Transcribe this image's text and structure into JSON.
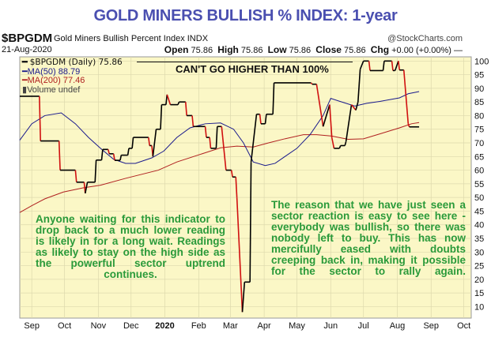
{
  "header": {
    "title": "GOLD MINERS BULLISH % INDEX: 1-year",
    "symbol": "$BPGDM",
    "symbol_description": "Gold Miners Bullish Percent Index  INDX",
    "copyright": "@StockCharts.com",
    "date": "21-Aug-2020",
    "open_label": "Open",
    "open": "75.86",
    "high_label": "High",
    "high": "75.86",
    "low_label": "Low",
    "low": "75.86",
    "close_label": "Close",
    "close": "75.86",
    "chg_label": "Chg",
    "chg": "+0.00 (+0.00%)"
  },
  "legend": {
    "main": "$BPGDM (Daily) 75.86",
    "ma50": "MA(50) 88.79",
    "ma200": "MA(200) 77.46",
    "volume": "Volume undef"
  },
  "annotations": {
    "cap": "CAN'T GO HIGHER THAN 100%",
    "left_lines": [
      "Anyone waiting for this indicator to",
      "drop back to a much lower reading",
      "is likely in for a long wait. Readings",
      "as likely to stay on the high side as",
      "the powerful sector uptrend",
      "continues."
    ],
    "right_lines": [
      "The reason that we have just seen a",
      "sector reaction is easy to see here -",
      "everybody was bullish, so there was",
      "nobody left to buy. This has now",
      "mercifully eased with doubts",
      "creeping back in, making it possible",
      "for the sector to rally again."
    ]
  },
  "colors": {
    "plot_bg": "#fbf7c6",
    "grid": "#ddd9ad",
    "price_up": "#000000",
    "price_down": "#d01010",
    "ma50": "#1a1a8c",
    "ma200": "#b02020",
    "annotation": "#2a9a3a",
    "title": "#4a4fb0"
  },
  "chart_data": {
    "type": "line",
    "x_range": [
      "2019-08-21",
      "2020-10-31"
    ],
    "ylim": [
      5,
      100
    ],
    "y_ticks": [
      10,
      15,
      20,
      25,
      30,
      35,
      40,
      45,
      50,
      55,
      60,
      65,
      70,
      75,
      80,
      85,
      90,
      95,
      100
    ],
    "x_ticks": [
      {
        "date": "2019-09-01",
        "label": "Sep"
      },
      {
        "date": "2019-10-01",
        "label": "Oct"
      },
      {
        "date": "2019-11-01",
        "label": "Nov"
      },
      {
        "date": "2019-12-01",
        "label": "Dec"
      },
      {
        "date": "2020-01-01",
        "label": "2020"
      },
      {
        "date": "2020-02-01",
        "label": "Feb"
      },
      {
        "date": "2020-03-01",
        "label": "Mar"
      },
      {
        "date": "2020-04-01",
        "label": "Apr"
      },
      {
        "date": "2020-05-01",
        "label": "May"
      },
      {
        "date": "2020-06-01",
        "label": "Jun"
      },
      {
        "date": "2020-07-01",
        "label": "Jul"
      },
      {
        "date": "2020-08-01",
        "label": "Aug"
      },
      {
        "date": "2020-09-01",
        "label": "Sep"
      },
      {
        "date": "2020-10-01",
        "label": "Oct"
      }
    ],
    "grid": true,
    "legend_position": "top-left",
    "series": [
      {
        "name": "$BPGDM (Daily)",
        "points": [
          [
            "2019-08-21",
            87.1
          ],
          [
            "2019-09-08",
            87.1
          ],
          [
            "2019-09-09",
            70.7
          ],
          [
            "2019-09-26",
            70.7
          ],
          [
            "2019-09-27",
            60
          ],
          [
            "2019-10-11",
            60
          ],
          [
            "2019-10-12",
            55.6
          ],
          [
            "2019-10-19",
            55.6
          ],
          [
            "2019-10-20",
            51.5
          ],
          [
            "2019-10-22",
            55.6
          ],
          [
            "2019-10-29",
            55.6
          ],
          [
            "2019-10-30",
            63.7
          ],
          [
            "2019-11-04",
            63.7
          ],
          [
            "2019-11-05",
            67.6
          ],
          [
            "2019-11-10",
            67.6
          ],
          [
            "2019-11-11",
            66
          ],
          [
            "2019-11-15",
            66
          ],
          [
            "2019-11-16",
            63.6
          ],
          [
            "2019-11-21",
            63.6
          ],
          [
            "2019-11-22",
            65.5
          ],
          [
            "2019-11-28",
            65.5
          ],
          [
            "2019-11-29",
            68
          ],
          [
            "2019-12-02",
            68
          ],
          [
            "2019-12-03",
            72
          ],
          [
            "2019-12-17",
            72
          ],
          [
            "2019-12-18",
            69
          ],
          [
            "2019-12-20",
            69
          ],
          [
            "2019-12-21",
            65
          ],
          [
            "2019-12-24",
            75
          ],
          [
            "2019-12-28",
            75
          ],
          [
            "2019-12-29",
            84
          ],
          [
            "2020-01-02",
            84
          ],
          [
            "2020-01-03",
            87.7
          ],
          [
            "2020-01-06",
            84
          ],
          [
            "2020-01-13",
            84
          ],
          [
            "2020-01-14",
            85
          ],
          [
            "2020-01-20",
            85
          ],
          [
            "2020-01-21",
            80
          ],
          [
            "2020-01-26",
            80
          ],
          [
            "2020-01-27",
            76
          ],
          [
            "2020-02-07",
            76
          ],
          [
            "2020-02-08",
            72
          ],
          [
            "2020-02-11",
            72
          ],
          [
            "2020-02-12",
            68
          ],
          [
            "2020-02-17",
            68
          ],
          [
            "2020-02-18",
            76
          ],
          [
            "2020-02-22",
            76
          ],
          [
            "2020-02-23",
            72
          ],
          [
            "2020-02-26",
            60
          ],
          [
            "2020-03-02",
            60
          ],
          [
            "2020-03-03",
            57.5
          ],
          [
            "2020-03-06",
            57.5
          ],
          [
            "2020-03-07",
            50
          ],
          [
            "2020-03-12",
            8
          ],
          [
            "2020-03-14",
            19
          ],
          [
            "2020-03-19",
            19
          ],
          [
            "2020-03-20",
            63
          ],
          [
            "2020-03-25",
            80.5
          ],
          [
            "2020-03-28",
            80.5
          ],
          [
            "2020-03-29",
            77
          ],
          [
            "2020-04-02",
            77
          ],
          [
            "2020-04-03",
            80.5
          ],
          [
            "2020-04-09",
            80.5
          ],
          [
            "2020-04-10",
            92
          ],
          [
            "2020-05-14",
            92
          ],
          [
            "2020-05-15",
            91.5
          ],
          [
            "2020-05-19",
            91.5
          ],
          [
            "2020-05-20",
            89
          ],
          [
            "2020-05-25",
            76
          ],
          [
            "2020-05-31",
            84
          ],
          [
            "2020-06-02",
            72
          ],
          [
            "2020-06-04",
            68
          ],
          [
            "2020-06-09",
            68
          ],
          [
            "2020-06-10",
            69
          ],
          [
            "2020-06-14",
            69
          ],
          [
            "2020-06-15",
            70.5
          ],
          [
            "2020-06-20",
            84
          ],
          [
            "2020-06-24",
            82
          ],
          [
            "2020-06-26",
            85
          ],
          [
            "2020-06-28",
            97
          ],
          [
            "2020-07-01",
            100
          ],
          [
            "2020-07-06",
            100
          ],
          [
            "2020-07-07",
            96.5
          ],
          [
            "2020-07-19",
            96.5
          ],
          [
            "2020-07-20",
            100
          ],
          [
            "2020-07-27",
            100
          ],
          [
            "2020-07-28",
            96.5
          ],
          [
            "2020-07-30",
            96.5
          ],
          [
            "2020-08-02",
            100
          ],
          [
            "2020-08-03",
            96.7
          ],
          [
            "2020-08-07",
            96.7
          ],
          [
            "2020-08-11",
            77
          ],
          [
            "2020-08-12",
            75.86
          ],
          [
            "2020-08-21",
            75.86
          ]
        ]
      },
      {
        "name": "MA(50)",
        "points": [
          [
            "2019-08-21",
            71
          ],
          [
            "2019-09-01",
            77
          ],
          [
            "2019-09-13",
            80
          ],
          [
            "2019-09-28",
            81
          ],
          [
            "2019-10-11",
            77
          ],
          [
            "2019-10-23",
            72
          ],
          [
            "2019-11-03",
            68
          ],
          [
            "2019-11-15",
            64
          ],
          [
            "2019-11-26",
            62.5
          ],
          [
            "2019-12-05",
            62.5
          ],
          [
            "2019-12-20",
            64.5
          ],
          [
            "2019-12-31",
            67
          ],
          [
            "2020-01-12",
            72
          ],
          [
            "2020-01-24",
            75.5
          ],
          [
            "2020-02-07",
            77
          ],
          [
            "2020-02-21",
            77.3
          ],
          [
            "2020-03-04",
            75
          ],
          [
            "2020-03-13",
            70
          ],
          [
            "2020-03-22",
            63
          ],
          [
            "2020-04-02",
            61.7
          ],
          [
            "2020-04-11",
            62.5
          ],
          [
            "2020-04-20",
            65
          ],
          [
            "2020-05-01",
            68
          ],
          [
            "2020-05-13",
            73
          ],
          [
            "2020-05-25",
            80
          ],
          [
            "2020-06-01",
            86.3
          ],
          [
            "2020-06-11",
            85
          ],
          [
            "2020-06-23",
            83.5
          ],
          [
            "2020-07-04",
            84.5
          ],
          [
            "2020-07-16",
            85.2
          ],
          [
            "2020-07-27",
            86
          ],
          [
            "2020-08-03",
            86.5
          ],
          [
            "2020-08-11",
            88
          ],
          [
            "2020-08-21",
            88.79
          ]
        ]
      },
      {
        "name": "MA(200)",
        "points": [
          [
            "2019-08-21",
            44.5
          ],
          [
            "2019-09-01",
            47
          ],
          [
            "2019-09-13",
            49.5
          ],
          [
            "2019-09-30",
            52
          ],
          [
            "2019-10-18",
            53.5
          ],
          [
            "2019-11-03",
            54.5
          ],
          [
            "2019-11-26",
            57
          ],
          [
            "2019-12-26",
            60
          ],
          [
            "2020-01-12",
            63
          ],
          [
            "2020-02-04",
            66
          ],
          [
            "2020-02-21",
            68.2
          ],
          [
            "2020-03-07",
            68.8
          ],
          [
            "2020-03-22",
            68.5
          ],
          [
            "2020-04-05",
            70
          ],
          [
            "2020-04-20",
            71.5
          ],
          [
            "2020-05-07",
            73
          ],
          [
            "2020-05-19",
            73
          ],
          [
            "2020-06-02",
            72.5
          ],
          [
            "2020-06-17",
            71.3
          ],
          [
            "2020-07-01",
            71.5
          ],
          [
            "2020-07-16",
            73.3
          ],
          [
            "2020-08-03",
            75.5
          ],
          [
            "2020-08-14",
            77
          ],
          [
            "2020-08-21",
            77.46
          ]
        ]
      }
    ]
  }
}
